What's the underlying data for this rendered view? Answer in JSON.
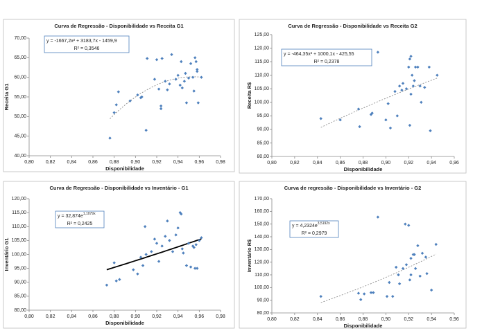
{
  "chart_data": [
    {
      "type": "scatter",
      "title": "Curva de Regressão - Disponibilidade vs Receita G1",
      "x_label": "Disponibilidade",
      "y_label": "Receita G1",
      "equation": "y = -1667,2x² + 3183,7x - 1459,9",
      "r2": "R² = 0,3546",
      "trendline": {
        "type": "polynomial",
        "color": "#8c8c8c",
        "dashed": true
      },
      "color": "#4f81bd",
      "xlim": [
        0.8,
        0.98
      ],
      "xticks": [
        {
          "value": 0.8,
          "label": "0,80"
        },
        {
          "value": 0.82,
          "label": "0,82"
        },
        {
          "value": 0.84,
          "label": "0,84"
        },
        {
          "value": 0.86,
          "label": "0,86"
        },
        {
          "value": 0.88,
          "label": "0,88"
        },
        {
          "value": 0.9,
          "label": "0,90"
        },
        {
          "value": 0.92,
          "label": "0,92"
        },
        {
          "value": 0.94,
          "label": "0,94"
        },
        {
          "value": 0.96,
          "label": "0,96"
        },
        {
          "value": 0.98,
          "label": "0,98"
        }
      ],
      "ylim": [
        40,
        70
      ],
      "yticks": [
        {
          "value": 40,
          "label": "40,00"
        },
        {
          "value": 45,
          "label": "45,00"
        },
        {
          "value": 50,
          "label": "50,00"
        },
        {
          "value": 55,
          "label": "55,00"
        },
        {
          "value": 60,
          "label": "60,00"
        },
        {
          "value": 65,
          "label": "65,00"
        },
        {
          "value": 70,
          "label": "70,00"
        }
      ],
      "x": [
        0.876,
        0.88,
        0.882,
        0.884,
        0.895,
        0.902,
        0.905,
        0.906,
        0.91,
        0.911,
        0.918,
        0.92,
        0.922,
        0.924,
        0.924,
        0.925,
        0.928,
        0.93,
        0.932,
        0.934,
        0.938,
        0.94,
        0.942,
        0.943,
        0.944,
        0.946,
        0.947,
        0.948,
        0.95,
        0.952,
        0.954,
        0.955,
        0.956,
        0.957,
        0.958,
        0.958,
        0.959,
        0.962
      ],
      "values": [
        44.5,
        51,
        53,
        56.3,
        54,
        55.5,
        54.8,
        55,
        46.5,
        64.8,
        59.5,
        64.5,
        57,
        52,
        52.7,
        64.8,
        59,
        56.8,
        58.3,
        65.8,
        59.5,
        60.5,
        58,
        64,
        57.3,
        59,
        61,
        53.5,
        59.8,
        63.5,
        60,
        56.5,
        65,
        64,
        62,
        61.5,
        53.5,
        60
      ]
    },
    {
      "type": "scatter",
      "title": "Curva de Regressão - Disponibilidade vs Receita G2",
      "x_label": "Disponibilidade",
      "y_label": "Receita R$",
      "equation": "y = -464,35x² + 1000,1x - 425,55",
      "r2": "R² = 0,2378",
      "trendline": {
        "type": "polynomial",
        "color": "#8c8c8c",
        "dashed": true
      },
      "color": "#4f81bd",
      "xlim": [
        0.8,
        0.96
      ],
      "xticks": [
        {
          "value": 0.8,
          "label": "0,80"
        },
        {
          "value": 0.82,
          "label": "0,82"
        },
        {
          "value": 0.84,
          "label": "0,84"
        },
        {
          "value": 0.86,
          "label": "0,86"
        },
        {
          "value": 0.88,
          "label": "0,88"
        },
        {
          "value": 0.9,
          "label": "0,90"
        },
        {
          "value": 0.92,
          "label": "0,92"
        },
        {
          "value": 0.94,
          "label": "0,94"
        },
        {
          "value": 0.96,
          "label": "0,96"
        }
      ],
      "ylim": [
        80,
        125
      ],
      "yticks": [
        {
          "value": 80,
          "label": "80,00"
        },
        {
          "value": 85,
          "label": "85,00"
        },
        {
          "value": 90,
          "label": "90,00"
        },
        {
          "value": 95,
          "label": "95,00"
        },
        {
          "value": 100,
          "label": "100,00"
        },
        {
          "value": 105,
          "label": "105,00"
        },
        {
          "value": 110,
          "label": "110,00"
        },
        {
          "value": 115,
          "label": "115,00"
        },
        {
          "value": 120,
          "label": "120,00"
        },
        {
          "value": 125,
          "label": "125,00"
        }
      ],
      "x": [
        0.843,
        0.86,
        0.876,
        0.877,
        0.887,
        0.888,
        0.893,
        0.9,
        0.902,
        0.904,
        0.908,
        0.91,
        0.912,
        0.914,
        0.915,
        0.918,
        0.92,
        0.921,
        0.921,
        0.922,
        0.922,
        0.923,
        0.924,
        0.925,
        0.926,
        0.928,
        0.93,
        0.931,
        0.934,
        0.938,
        0.939,
        0.945
      ],
      "values": [
        94,
        93.5,
        97.5,
        91,
        95.5,
        96,
        118.5,
        93.5,
        99.5,
        90.5,
        104,
        95,
        106,
        104.5,
        107,
        105,
        113,
        116,
        91.5,
        103,
        117,
        110,
        106,
        108,
        113,
        113,
        106,
        100,
        105.5,
        113,
        89.5,
        110
      ]
    },
    {
      "type": "scatter",
      "title": "Curva de Regressão - Disponibilidade vs Inventário - G1",
      "x_label": "Disponibilidade",
      "y_label": "Inventário G1",
      "equation": "y = 32,874e",
      "equation_exponent": "1,1079x",
      "r2": "R² = 0,2425",
      "trendline": {
        "type": "exponential",
        "color": "#000000",
        "dashed": false
      },
      "color": "#4f81bd",
      "xlim": [
        0.8,
        0.98
      ],
      "xticks": [
        {
          "value": 0.8,
          "label": "0,80"
        },
        {
          "value": 0.82,
          "label": "0,82"
        },
        {
          "value": 0.84,
          "label": "0,84"
        },
        {
          "value": 0.86,
          "label": "0,86"
        },
        {
          "value": 0.88,
          "label": "0,88"
        },
        {
          "value": 0.9,
          "label": "0,90"
        },
        {
          "value": 0.92,
          "label": "0,92"
        },
        {
          "value": 0.94,
          "label": "0,94"
        },
        {
          "value": 0.96,
          "label": "0,96"
        },
        {
          "value": 0.98,
          "label": "0,98"
        }
      ],
      "ylim": [
        80,
        120
      ],
      "yticks": [
        {
          "value": 80,
          "label": "80,00"
        },
        {
          "value": 85,
          "label": "85,00"
        },
        {
          "value": 90,
          "label": "90,00"
        },
        {
          "value": 95,
          "label": "95,00"
        },
        {
          "value": 100,
          "label": "100,00"
        },
        {
          "value": 105,
          "label": "105,00"
        },
        {
          "value": 110,
          "label": "110,00"
        },
        {
          "value": 115,
          "label": "115,00"
        },
        {
          "value": 120,
          "label": "120,00"
        }
      ],
      "x": [
        0.873,
        0.88,
        0.882,
        0.885,
        0.898,
        0.902,
        0.905,
        0.907,
        0.909,
        0.91,
        0.915,
        0.918,
        0.92,
        0.922,
        0.925,
        0.928,
        0.93,
        0.932,
        0.935,
        0.938,
        0.94,
        0.942,
        0.943,
        0.944,
        0.945,
        0.948,
        0.95,
        0.952,
        0.954,
        0.955,
        0.956,
        0.957,
        0.958,
        0.96,
        0.962
      ],
      "values": [
        89,
        97,
        90.5,
        91,
        94.5,
        93,
        99,
        96,
        110,
        100,
        101,
        105.5,
        104,
        97.5,
        103,
        106.5,
        112,
        105,
        101,
        107,
        109.5,
        115,
        114.5,
        102,
        100.5,
        96,
        104,
        95.5,
        103,
        102.5,
        95,
        103.5,
        95,
        105,
        106
      ]
    },
    {
      "type": "scatter",
      "title": "Curva de regressão - Disponibilidade vs Inventário - G2",
      "x_label": "Disponibilidade",
      "y_label": "Inventário R$",
      "equation": "y = 4,2324e",
      "equation_exponent": "3,5192x",
      "r2": "R² = 0,2979",
      "trendline": {
        "type": "exponential",
        "color": "#8c8c8c",
        "dashed": true
      },
      "color": "#4f81bd",
      "xlim": [
        0.8,
        0.96
      ],
      "xticks": [
        {
          "value": 0.8,
          "label": "0,80"
        },
        {
          "value": 0.82,
          "label": "0,82"
        },
        {
          "value": 0.84,
          "label": "0,84"
        },
        {
          "value": 0.86,
          "label": "0,86"
        },
        {
          "value": 0.88,
          "label": "0,88"
        },
        {
          "value": 0.9,
          "label": "0,90"
        },
        {
          "value": 0.92,
          "label": "0,92"
        },
        {
          "value": 0.94,
          "label": "0,94"
        },
        {
          "value": 0.96,
          "label": "0,96"
        }
      ],
      "ylim": [
        80,
        170
      ],
      "yticks": [
        {
          "value": 80,
          "label": "80,00"
        },
        {
          "value": 90,
          "label": "90,00"
        },
        {
          "value": 100,
          "label": "100,00"
        },
        {
          "value": 110,
          "label": "110,00"
        },
        {
          "value": 120,
          "label": "120,00"
        },
        {
          "value": 130,
          "label": "130,00"
        },
        {
          "value": 140,
          "label": "140,00"
        },
        {
          "value": 150,
          "label": "150,00"
        },
        {
          "value": 160,
          "label": "160,00"
        },
        {
          "value": 170,
          "label": "170,00"
        }
      ],
      "x": [
        0.843,
        0.876,
        0.878,
        0.881,
        0.887,
        0.889,
        0.893,
        0.901,
        0.903,
        0.906,
        0.909,
        0.911,
        0.912,
        0.915,
        0.917,
        0.918,
        0.92,
        0.921,
        0.922,
        0.922,
        0.924,
        0.925,
        0.926,
        0.928,
        0.93,
        0.932,
        0.935,
        0.936,
        0.94,
        0.944
      ],
      "values": [
        93,
        95.5,
        90.5,
        95,
        96,
        96,
        155.5,
        93,
        104,
        93,
        116,
        110,
        103,
        115,
        150,
        118,
        149,
        106,
        110,
        123,
        126,
        126,
        115,
        133,
        109,
        127,
        124,
        111,
        98,
        134
      ]
    }
  ]
}
